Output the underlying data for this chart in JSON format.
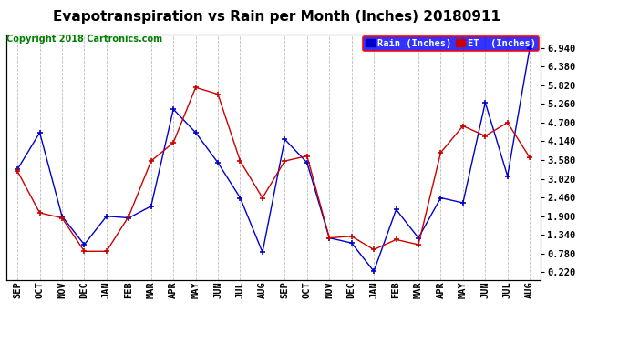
{
  "title": "Evapotranspiration vs Rain per Month (Inches) 20180911",
  "copyright": "Copyright 2018 Cartronics.com",
  "months": [
    "SEP",
    "OCT",
    "NOV",
    "DEC",
    "JAN",
    "FEB",
    "MAR",
    "APR",
    "MAY",
    "JUN",
    "JUL",
    "AUG",
    "SEP",
    "OCT",
    "NOV",
    "DEC",
    "JAN",
    "FEB",
    "MAR",
    "APR",
    "MAY",
    "JUN",
    "JUL",
    "AUG"
  ],
  "rain": [
    3.3,
    4.4,
    1.9,
    1.05,
    1.9,
    1.85,
    2.2,
    5.1,
    4.4,
    3.5,
    2.45,
    0.82,
    4.2,
    3.5,
    1.25,
    1.1,
    0.25,
    2.1,
    1.25,
    2.45,
    2.3,
    5.3,
    3.1,
    6.94
  ],
  "et": [
    3.25,
    2.0,
    1.85,
    0.85,
    0.85,
    1.9,
    3.55,
    4.1,
    5.75,
    5.55,
    3.55,
    2.45,
    3.55,
    3.7,
    1.25,
    1.3,
    0.9,
    1.2,
    1.05,
    3.8,
    4.6,
    4.3,
    4.7,
    3.65
  ],
  "rain_color": "#0000cc",
  "et_color": "#cc0000",
  "yticks": [
    0.22,
    0.78,
    1.34,
    1.9,
    2.46,
    3.02,
    3.58,
    4.14,
    4.7,
    5.26,
    5.82,
    6.38,
    6.94
  ],
  "ylim_min": 0.0,
  "ylim_max": 7.35,
  "background_color": "#ffffff",
  "grid_color": "#aaaaaa",
  "title_fontsize": 11,
  "copyright_fontsize": 7,
  "tick_fontsize": 7.5,
  "ytick_fontsize": 7.5,
  "legend_rain_label": "Rain (Inches)",
  "legend_et_label": "ET  (Inches)"
}
